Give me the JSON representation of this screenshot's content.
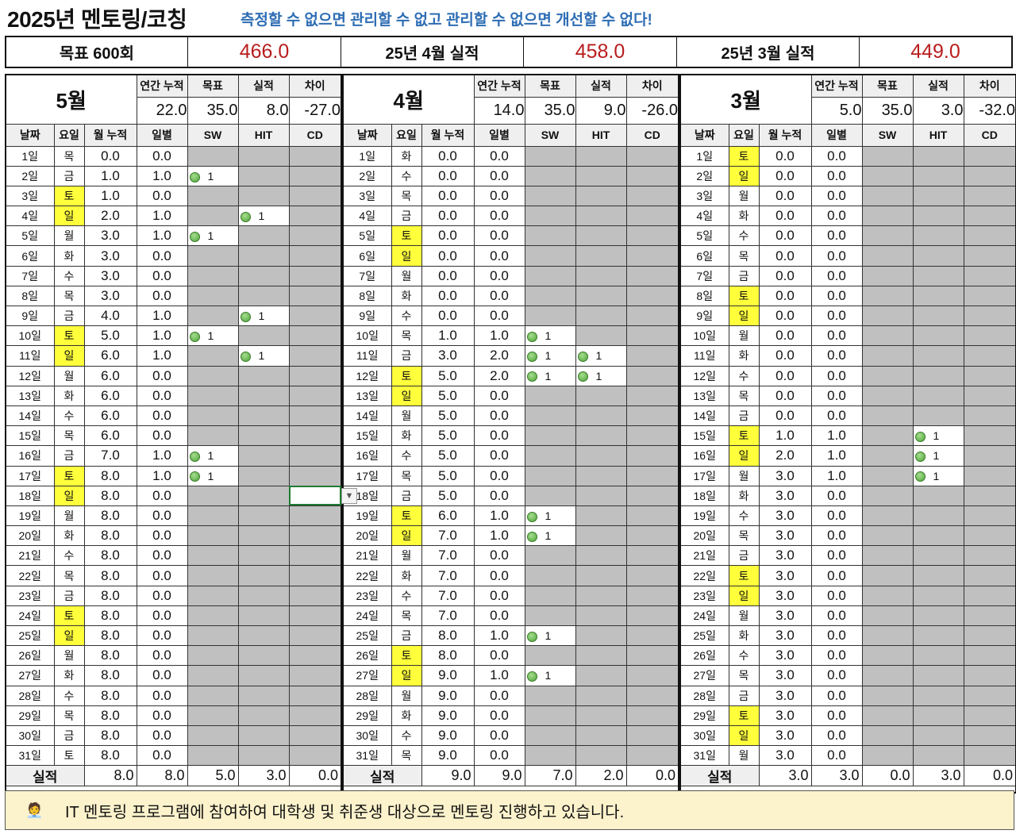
{
  "title": "2025년 멘토링/코칭",
  "slogan": "측정할 수 없으면 관리할 수 없고 관리할 수 없으면 개선할 수 없다!",
  "summary": [
    {
      "label": "목표 600회",
      "value": "466.0"
    },
    {
      "label": "25년 4월 실적",
      "value": "458.0"
    },
    {
      "label": "25년 3월 실적",
      "value": "449.0"
    }
  ],
  "stat_headers": [
    "연간 누적",
    "목표",
    "실적",
    "차이"
  ],
  "col_headers": [
    "날짜",
    "요일",
    "월 누적",
    "일별",
    "SW",
    "HIT",
    "CD"
  ],
  "total_label": "실적",
  "months": [
    {
      "title": "5월",
      "stats": [
        "22.0",
        "35.0",
        "8.0",
        "-27.0"
      ],
      "totals": [
        "8.0",
        "8.0",
        "5.0",
        "3.0",
        "0.0"
      ],
      "rows": [
        [
          "1일",
          "목",
          "0.0",
          "0.0",
          "",
          "",
          "",
          0
        ],
        [
          "2일",
          "금",
          "1.0",
          "1.0",
          "1",
          "",
          "",
          0
        ],
        [
          "3일",
          "토",
          "1.0",
          "0.0",
          "",
          "",
          "",
          1
        ],
        [
          "4일",
          "일",
          "2.0",
          "1.0",
          "",
          "1",
          "",
          1
        ],
        [
          "5일",
          "월",
          "3.0",
          "1.0",
          "1",
          "",
          "",
          0
        ],
        [
          "6일",
          "화",
          "3.0",
          "0.0",
          "",
          "",
          "",
          0
        ],
        [
          "7일",
          "수",
          "3.0",
          "0.0",
          "",
          "",
          "",
          0
        ],
        [
          "8일",
          "목",
          "3.0",
          "0.0",
          "",
          "",
          "",
          0
        ],
        [
          "9일",
          "금",
          "4.0",
          "1.0",
          "",
          "1",
          "",
          0
        ],
        [
          "10일",
          "토",
          "5.0",
          "1.0",
          "1",
          "",
          "",
          1
        ],
        [
          "11일",
          "일",
          "6.0",
          "1.0",
          "",
          "1",
          "",
          1
        ],
        [
          "12일",
          "월",
          "6.0",
          "0.0",
          "",
          "",
          "",
          0
        ],
        [
          "13일",
          "화",
          "6.0",
          "0.0",
          "",
          "",
          "",
          0
        ],
        [
          "14일",
          "수",
          "6.0",
          "0.0",
          "",
          "",
          "",
          0
        ],
        [
          "15일",
          "목",
          "6.0",
          "0.0",
          "",
          "",
          "",
          0
        ],
        [
          "16일",
          "금",
          "7.0",
          "1.0",
          "1",
          "",
          "",
          0
        ],
        [
          "17일",
          "토",
          "8.0",
          "1.0",
          "1",
          "",
          "",
          1
        ],
        [
          "18일",
          "일",
          "8.0",
          "0.0",
          "",
          "",
          "",
          1
        ],
        [
          "19일",
          "월",
          "8.0",
          "0.0",
          "",
          "",
          "",
          0
        ],
        [
          "20일",
          "화",
          "8.0",
          "0.0",
          "",
          "",
          "",
          0
        ],
        [
          "21일",
          "수",
          "8.0",
          "0.0",
          "",
          "",
          "",
          0
        ],
        [
          "22일",
          "목",
          "8.0",
          "0.0",
          "",
          "",
          "",
          0
        ],
        [
          "23일",
          "금",
          "8.0",
          "0.0",
          "",
          "",
          "",
          0
        ],
        [
          "24일",
          "토",
          "8.0",
          "0.0",
          "",
          "",
          "",
          1
        ],
        [
          "25일",
          "일",
          "8.0",
          "0.0",
          "",
          "",
          "",
          1
        ],
        [
          "26일",
          "월",
          "8.0",
          "0.0",
          "",
          "",
          "",
          0
        ],
        [
          "27일",
          "화",
          "8.0",
          "0.0",
          "",
          "",
          "",
          0
        ],
        [
          "28일",
          "수",
          "8.0",
          "0.0",
          "",
          "",
          "",
          0
        ],
        [
          "29일",
          "목",
          "8.0",
          "0.0",
          "",
          "",
          "",
          0
        ],
        [
          "30일",
          "금",
          "8.0",
          "0.0",
          "",
          "",
          "",
          0
        ],
        [
          "31일",
          "토",
          "8.0",
          "0.0",
          "",
          "",
          "",
          0
        ]
      ]
    },
    {
      "title": "4월",
      "stats": [
        "14.0",
        "35.0",
        "9.0",
        "-26.0"
      ],
      "totals": [
        "9.0",
        "9.0",
        "7.0",
        "2.0",
        "0.0"
      ],
      "rows": [
        [
          "1일",
          "화",
          "0.0",
          "0.0",
          "",
          "",
          "",
          0
        ],
        [
          "2일",
          "수",
          "0.0",
          "0.0",
          "",
          "",
          "",
          0
        ],
        [
          "3일",
          "목",
          "0.0",
          "0.0",
          "",
          "",
          "",
          0
        ],
        [
          "4일",
          "금",
          "0.0",
          "0.0",
          "",
          "",
          "",
          0
        ],
        [
          "5일",
          "토",
          "0.0",
          "0.0",
          "",
          "",
          "",
          1
        ],
        [
          "6일",
          "일",
          "0.0",
          "0.0",
          "",
          "",
          "",
          1
        ],
        [
          "7일",
          "월",
          "0.0",
          "0.0",
          "",
          "",
          "",
          0
        ],
        [
          "8일",
          "화",
          "0.0",
          "0.0",
          "",
          "",
          "",
          0
        ],
        [
          "9일",
          "수",
          "0.0",
          "0.0",
          "",
          "",
          "",
          0
        ],
        [
          "10일",
          "목",
          "1.0",
          "1.0",
          "1",
          "",
          "",
          0
        ],
        [
          "11일",
          "금",
          "3.0",
          "2.0",
          "1",
          "1",
          "",
          0
        ],
        [
          "12일",
          "토",
          "5.0",
          "2.0",
          "1",
          "1",
          "",
          1
        ],
        [
          "13일",
          "일",
          "5.0",
          "0.0",
          "",
          "",
          "",
          1
        ],
        [
          "14일",
          "월",
          "5.0",
          "0.0",
          "",
          "",
          "",
          0
        ],
        [
          "15일",
          "화",
          "5.0",
          "0.0",
          "",
          "",
          "",
          0
        ],
        [
          "16일",
          "수",
          "5.0",
          "0.0",
          "",
          "",
          "",
          0
        ],
        [
          "17일",
          "목",
          "5.0",
          "0.0",
          "",
          "",
          "",
          0
        ],
        [
          "18일",
          "금",
          "5.0",
          "0.0",
          "",
          "",
          "",
          0
        ],
        [
          "19일",
          "토",
          "6.0",
          "1.0",
          "1",
          "",
          "",
          1
        ],
        [
          "20일",
          "일",
          "7.0",
          "1.0",
          "1",
          "",
          "",
          1
        ],
        [
          "21일",
          "월",
          "7.0",
          "0.0",
          "",
          "",
          "",
          0
        ],
        [
          "22일",
          "화",
          "7.0",
          "0.0",
          "",
          "",
          "",
          0
        ],
        [
          "23일",
          "수",
          "7.0",
          "0.0",
          "",
          "",
          "",
          0
        ],
        [
          "24일",
          "목",
          "7.0",
          "0.0",
          "",
          "",
          "",
          0
        ],
        [
          "25일",
          "금",
          "8.0",
          "1.0",
          "1",
          "",
          "",
          0
        ],
        [
          "26일",
          "토",
          "8.0",
          "0.0",
          "",
          "",
          "",
          1
        ],
        [
          "27일",
          "일",
          "9.0",
          "1.0",
          "1",
          "",
          "",
          1
        ],
        [
          "28일",
          "월",
          "9.0",
          "0.0",
          "",
          "",
          "",
          0
        ],
        [
          "29일",
          "화",
          "9.0",
          "0.0",
          "",
          "",
          "",
          0
        ],
        [
          "30일",
          "수",
          "9.0",
          "0.0",
          "",
          "",
          "",
          0
        ],
        [
          "31일",
          "목",
          "9.0",
          "0.0",
          "",
          "",
          "",
          0
        ]
      ]
    },
    {
      "title": "3월",
      "stats": [
        "5.0",
        "35.0",
        "3.0",
        "-32.0"
      ],
      "totals": [
        "3.0",
        "3.0",
        "0.0",
        "3.0",
        "0.0"
      ],
      "rows": [
        [
          "1일",
          "토",
          "0.0",
          "0.0",
          "",
          "",
          "",
          1
        ],
        [
          "2일",
          "일",
          "0.0",
          "0.0",
          "",
          "",
          "",
          1
        ],
        [
          "3일",
          "월",
          "0.0",
          "0.0",
          "",
          "",
          "",
          0
        ],
        [
          "4일",
          "화",
          "0.0",
          "0.0",
          "",
          "",
          "",
          0
        ],
        [
          "5일",
          "수",
          "0.0",
          "0.0",
          "",
          "",
          "",
          0
        ],
        [
          "6일",
          "목",
          "0.0",
          "0.0",
          "",
          "",
          "",
          0
        ],
        [
          "7일",
          "금",
          "0.0",
          "0.0",
          "",
          "",
          "",
          0
        ],
        [
          "8일",
          "토",
          "0.0",
          "0.0",
          "",
          "",
          "",
          1
        ],
        [
          "9일",
          "일",
          "0.0",
          "0.0",
          "",
          "",
          "",
          1
        ],
        [
          "10일",
          "월",
          "0.0",
          "0.0",
          "",
          "",
          "",
          0
        ],
        [
          "11일",
          "화",
          "0.0",
          "0.0",
          "",
          "",
          "",
          0
        ],
        [
          "12일",
          "수",
          "0.0",
          "0.0",
          "",
          "",
          "",
          0
        ],
        [
          "13일",
          "목",
          "0.0",
          "0.0",
          "",
          "",
          "",
          0
        ],
        [
          "14일",
          "금",
          "0.0",
          "0.0",
          "",
          "",
          "",
          0
        ],
        [
          "15일",
          "토",
          "1.0",
          "1.0",
          "",
          "1",
          "",
          1
        ],
        [
          "16일",
          "일",
          "2.0",
          "1.0",
          "",
          "1",
          "",
          1
        ],
        [
          "17일",
          "월",
          "3.0",
          "1.0",
          "",
          "1",
          "",
          0
        ],
        [
          "18일",
          "화",
          "3.0",
          "0.0",
          "",
          "",
          "",
          0
        ],
        [
          "19일",
          "수",
          "3.0",
          "0.0",
          "",
          "",
          "",
          0
        ],
        [
          "20일",
          "목",
          "3.0",
          "0.0",
          "",
          "",
          "",
          0
        ],
        [
          "21일",
          "금",
          "3.0",
          "0.0",
          "",
          "",
          "",
          0
        ],
        [
          "22일",
          "토",
          "3.0",
          "0.0",
          "",
          "",
          "",
          1
        ],
        [
          "23일",
          "일",
          "3.0",
          "0.0",
          "",
          "",
          "",
          1
        ],
        [
          "24일",
          "월",
          "3.0",
          "0.0",
          "",
          "",
          "",
          0
        ],
        [
          "25일",
          "화",
          "3.0",
          "0.0",
          "",
          "",
          "",
          0
        ],
        [
          "26일",
          "수",
          "3.0",
          "0.0",
          "",
          "",
          "",
          0
        ],
        [
          "27일",
          "목",
          "3.0",
          "0.0",
          "",
          "",
          "",
          0
        ],
        [
          "28일",
          "금",
          "3.0",
          "0.0",
          "",
          "",
          "",
          0
        ],
        [
          "29일",
          "토",
          "3.0",
          "0.0",
          "",
          "",
          "",
          1
        ],
        [
          "30일",
          "일",
          "3.0",
          "0.0",
          "",
          "",
          "",
          1
        ],
        [
          "31일",
          "월",
          "3.0",
          "0.0",
          "",
          "",
          "",
          0
        ]
      ]
    }
  ],
  "footer": {
    "icon": "mentor-emoji",
    "text": "IT 멘토링 프로그램에 참여하여 대학생 및 취준생 대상으로 멘토링 진행하고 있습니다."
  },
  "colors": {
    "highlight": "#ffff3c",
    "value_red": "#b81d1d",
    "slogan_blue": "#2e6db4",
    "footer_bg": "#fcf2cc"
  }
}
